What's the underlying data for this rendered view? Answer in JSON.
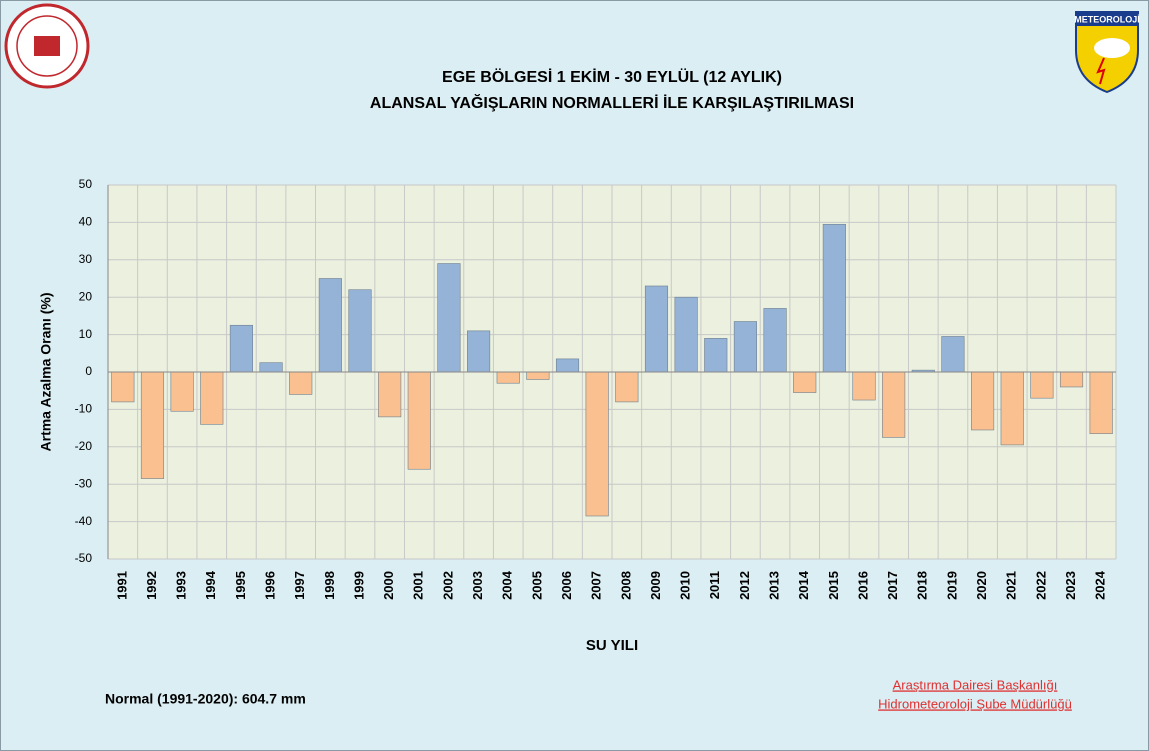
{
  "chart_data": {
    "type": "bar",
    "title": [
      "EGE BÖLGESİ  1 EKİM - 30 EYLÜL (12 AYLIK)",
      "ALANSAL YAĞIŞLARIN NORMALLERİ İLE KARŞILAŞTIRILMASI"
    ],
    "ylabel": "Artma Azalma Oranı (%)",
    "xlabel": "SU YILI",
    "categories": [
      "1991",
      "1992",
      "1993",
      "1994",
      "1995",
      "1996",
      "1997",
      "1998",
      "1999",
      "2000",
      "2001",
      "2002",
      "2003",
      "2004",
      "2005",
      "2006",
      "2007",
      "2008",
      "2009",
      "2010",
      "2011",
      "2012",
      "2013",
      "2014",
      "2015",
      "2016",
      "2017",
      "2018",
      "2019",
      "2020",
      "2021",
      "2022",
      "2023",
      "2024"
    ],
    "values": [
      -8,
      -28.5,
      -10.5,
      -14,
      12.5,
      2.5,
      -6,
      25,
      22,
      -12,
      -26,
      29,
      11,
      -3,
      -2,
      3.5,
      -38.5,
      -8,
      23,
      20,
      9,
      13.5,
      17,
      -5.5,
      39.5,
      -7.5,
      -17.5,
      0.5,
      9.5,
      -15.5,
      -19.5,
      -7,
      -4,
      -16.5
    ],
    "positive_color": "#95b3d7",
    "negative_color": "#fac090",
    "ylim": [
      -50,
      50
    ],
    "yticks": [
      -50,
      -40,
      -30,
      -20,
      -10,
      0,
      10,
      20,
      30,
      40,
      50
    ],
    "grid": true,
    "note": "Normal (1991-2020):  604.7 mm",
    "credits": [
      "Araştırma Dairesi Başkanlığı",
      "Hidrometeoroloji Şube Müdürlüğü"
    ],
    "logo_text": "METEOROLOJİ"
  }
}
